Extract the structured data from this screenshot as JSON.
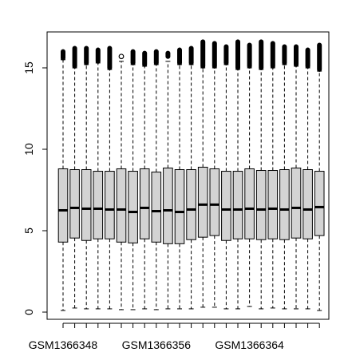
{
  "chart_data": {
    "type": "boxplot",
    "title": "",
    "xlabel": "",
    "ylabel": "",
    "ylim": [
      -0.7,
      16.9
    ],
    "y_ticks": [
      0,
      5,
      10,
      15
    ],
    "x_tick_labels": [
      {
        "index": 0,
        "label": "GSM1366348"
      },
      {
        "index": 8,
        "label": "GSM1366356"
      },
      {
        "index": 16,
        "label": "GSM1366364"
      }
    ],
    "box_fill": "#d3d3d3",
    "outlier_color": "#000000",
    "grid": false,
    "legend": "none",
    "boxes": [
      {
        "q1": 4.3,
        "median": 6.25,
        "q3": 8.8,
        "whisker_low": 0.1,
        "whisker_high": 15.5,
        "outliers_from": 15.6,
        "outliers_to": 16.0
      },
      {
        "q1": 4.55,
        "median": 6.4,
        "q3": 8.75,
        "whisker_low": 0.25,
        "whisker_high": 15.0,
        "outliers_from": 15.1,
        "outliers_to": 16.2
      },
      {
        "q1": 4.4,
        "median": 6.35,
        "q3": 8.75,
        "whisker_low": 0.2,
        "whisker_high": 15.2,
        "outliers_from": 15.3,
        "outliers_to": 16.2
      },
      {
        "q1": 4.5,
        "median": 6.35,
        "q3": 8.65,
        "whisker_low": 0.2,
        "whisker_high": 15.3,
        "outliers_from": 15.4,
        "outliers_to": 16.1
      },
      {
        "q1": 4.5,
        "median": 6.3,
        "q3": 8.65,
        "whisker_low": 0.2,
        "whisker_high": 14.9,
        "outliers_from": 15.0,
        "outliers_to": 16.2
      },
      {
        "q1": 4.3,
        "median": 6.3,
        "q3": 8.8,
        "whisker_low": 0.15,
        "whisker_high": 15.4,
        "outliers_from": 15.7,
        "outliers_to": 15.7
      },
      {
        "q1": 4.25,
        "median": 6.15,
        "q3": 8.65,
        "whisker_low": 0.15,
        "whisker_high": 15.2,
        "outliers_from": 15.3,
        "outliers_to": 16.0
      },
      {
        "q1": 4.5,
        "median": 6.4,
        "q3": 8.8,
        "whisker_low": 0.2,
        "whisker_high": 15.1,
        "outliers_from": 15.2,
        "outliers_to": 15.9
      },
      {
        "q1": 4.3,
        "median": 6.2,
        "q3": 8.6,
        "whisker_low": 0.15,
        "whisker_high": 15.2,
        "outliers_from": 15.3,
        "outliers_to": 16.0
      },
      {
        "q1": 4.2,
        "median": 6.25,
        "q3": 8.85,
        "whisker_low": 0.2,
        "whisker_high": 15.4,
        "outliers_from": 15.7,
        "outliers_to": 15.9
      },
      {
        "q1": 4.2,
        "median": 6.15,
        "q3": 8.75,
        "whisker_low": 0.2,
        "whisker_high": 15.2,
        "outliers_from": 15.3,
        "outliers_to": 16.1
      },
      {
        "q1": 4.45,
        "median": 6.3,
        "q3": 8.75,
        "whisker_low": 0.2,
        "whisker_high": 15.2,
        "outliers_from": 15.3,
        "outliers_to": 16.2
      },
      {
        "q1": 4.6,
        "median": 6.6,
        "q3": 8.9,
        "whisker_low": 0.3,
        "whisker_high": 15.0,
        "outliers_from": 15.1,
        "outliers_to": 16.6
      },
      {
        "q1": 4.7,
        "median": 6.6,
        "q3": 8.8,
        "whisker_low": 0.3,
        "whisker_high": 15.0,
        "outliers_from": 15.1,
        "outliers_to": 16.5
      },
      {
        "q1": 4.4,
        "median": 6.3,
        "q3": 8.65,
        "whisker_low": 0.2,
        "whisker_high": 15.2,
        "outliers_from": 15.3,
        "outliers_to": 16.3
      },
      {
        "q1": 4.5,
        "median": 6.3,
        "q3": 8.65,
        "whisker_low": 0.2,
        "whisker_high": 14.9,
        "outliers_from": 15.0,
        "outliers_to": 16.6
      },
      {
        "q1": 4.5,
        "median": 6.35,
        "q3": 8.8,
        "whisker_low": 0.35,
        "whisker_high": 15.0,
        "outliers_from": 15.1,
        "outliers_to": 16.4
      },
      {
        "q1": 4.45,
        "median": 6.3,
        "q3": 8.7,
        "whisker_low": 0.2,
        "whisker_high": 14.9,
        "outliers_from": 15.0,
        "outliers_to": 16.6
      },
      {
        "q1": 4.5,
        "median": 6.35,
        "q3": 8.7,
        "whisker_low": 0.25,
        "whisker_high": 15.0,
        "outliers_from": 15.1,
        "outliers_to": 16.5
      },
      {
        "q1": 4.45,
        "median": 6.3,
        "q3": 8.75,
        "whisker_low": 0.2,
        "whisker_high": 15.2,
        "outliers_from": 15.3,
        "outliers_to": 16.3
      },
      {
        "q1": 4.55,
        "median": 6.4,
        "q3": 8.85,
        "whisker_low": 0.2,
        "whisker_high": 15.1,
        "outliers_from": 15.2,
        "outliers_to": 16.3
      },
      {
        "q1": 4.5,
        "median": 6.3,
        "q3": 8.75,
        "whisker_low": 0.2,
        "whisker_high": 15.0,
        "outliers_from": 15.1,
        "outliers_to": 16.1
      },
      {
        "q1": 4.7,
        "median": 6.45,
        "q3": 8.65,
        "whisker_low": 0.1,
        "whisker_high": 14.8,
        "outliers_from": 14.9,
        "outliers_to": 16.4
      }
    ]
  }
}
